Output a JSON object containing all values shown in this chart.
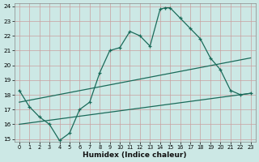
{
  "xlabel": "Humidex (Indice chaleur)",
  "xlim": [
    -0.5,
    23.5
  ],
  "ylim": [
    14.8,
    24.2
  ],
  "xticks": [
    0,
    1,
    2,
    3,
    4,
    5,
    6,
    7,
    8,
    9,
    10,
    11,
    12,
    13,
    14,
    15,
    16,
    17,
    18,
    19,
    20,
    21,
    22,
    23
  ],
  "yticks": [
    15,
    16,
    17,
    18,
    19,
    20,
    21,
    22,
    23,
    24
  ],
  "bg_color": "#cce8e5",
  "grid_color_major": "#c8a0a0",
  "grid_color_minor": "#d4b8b8",
  "line_color": "#1a6b5a",
  "line1_x": [
    0,
    1,
    2,
    3,
    4,
    5,
    6,
    7,
    8,
    9,
    10,
    11,
    12,
    13,
    14,
    14.5,
    15,
    16,
    17,
    18,
    19,
    20,
    21,
    22,
    23
  ],
  "line1_y": [
    18.3,
    17.2,
    16.5,
    16.0,
    14.9,
    15.4,
    17.0,
    17.5,
    19.5,
    21.0,
    21.2,
    22.3,
    22.0,
    21.3,
    23.8,
    23.9,
    23.9,
    23.2,
    22.5,
    21.8,
    20.5,
    19.7,
    18.3,
    18.0,
    18.1
  ],
  "line2_x": [
    0,
    23
  ],
  "line2_y": [
    17.5,
    20.5
  ],
  "line3_x": [
    0,
    23
  ],
  "line3_y": [
    16.0,
    18.1
  ]
}
